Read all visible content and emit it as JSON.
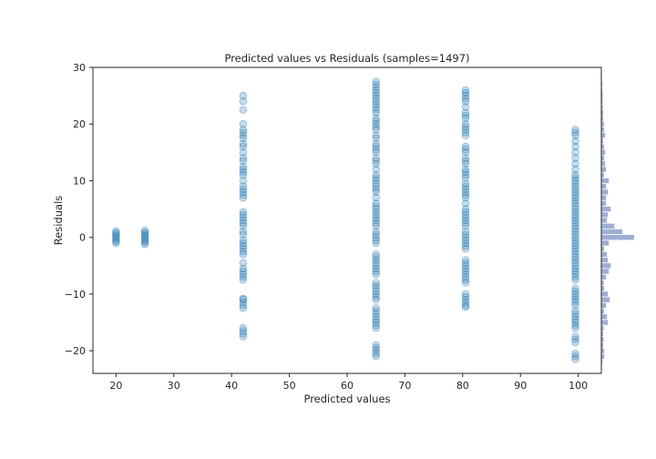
{
  "chart_data": {
    "type": "scatter",
    "title": "Predicted values vs Residuals (samples=1497)",
    "xlabel": "Predicted values",
    "ylabel": "Residuals",
    "xlim": [
      16,
      104
    ],
    "ylim": [
      -24,
      30
    ],
    "x_ticks": [
      20,
      30,
      40,
      50,
      60,
      70,
      80,
      90,
      100
    ],
    "y_ticks": [
      -20,
      -10,
      0,
      10,
      20,
      30
    ],
    "grid": false,
    "point_color": "#1f77b4",
    "point_alpha": 0.25,
    "histogram_color": "#8da0cb",
    "series": [
      {
        "x": 20,
        "y": [
          -1.0,
          -0.7,
          -0.4,
          -0.1,
          0.2,
          0.5,
          0.8,
          1.1
        ]
      },
      {
        "x": 25,
        "y": [
          -1.2,
          -0.9,
          -0.6,
          -0.3,
          0.0,
          0.3,
          0.6,
          0.9,
          1.2
        ]
      },
      {
        "x": 42,
        "y": [
          -17.5,
          -17.0,
          -16.5,
          -16.0,
          -12.5,
          -12.0,
          -11.5,
          -11.0,
          -10.8,
          -7.5,
          -7.0,
          -6.5,
          -6.0,
          -5.5,
          -4.5,
          -3.0,
          -2.5,
          -2.0,
          -1.5,
          -1.0,
          -0.5,
          0.5,
          1.0,
          2.0,
          2.5,
          3.0,
          3.5,
          4.0,
          4.5,
          7.0,
          7.5,
          8.0,
          8.5,
          9.0,
          10.0,
          11.0,
          11.5,
          12.0,
          12.5,
          13.5,
          14.0,
          15.0,
          16.0,
          16.5,
          17.5,
          18.0,
          18.5,
          19.0,
          20.0,
          22.5,
          24.0,
          25.0
        ]
      },
      {
        "x": 65,
        "y": [
          -21.0,
          -20.5,
          -20.0,
          -19.5,
          -19.0,
          -16.0,
          -15.5,
          -15.0,
          -14.5,
          -14.0,
          -13.5,
          -13.0,
          -12.5,
          -11.0,
          -10.5,
          -10.0,
          -9.5,
          -9.0,
          -8.5,
          -8.0,
          -6.5,
          -6.0,
          -5.5,
          -5.0,
          -4.5,
          -4.0,
          -3.5,
          -3.0,
          -1.0,
          -0.5,
          0.0,
          0.5,
          1.0,
          2.0,
          2.5,
          3.0,
          3.5,
          4.0,
          4.5,
          5.0,
          5.5,
          6.0,
          7.0,
          8.0,
          8.5,
          9.0,
          9.5,
          10.0,
          10.5,
          11.0,
          12.0,
          13.0,
          13.5,
          14.0,
          15.0,
          15.5,
          16.0,
          16.5,
          17.5,
          18.0,
          19.0,
          19.5,
          20.0,
          20.5,
          21.0,
          22.0,
          22.5,
          23.0,
          23.5,
          24.0,
          24.5,
          25.0,
          25.5,
          26.0,
          26.5,
          27.0,
          27.5
        ]
      },
      {
        "x": 80.5,
        "y": [
          -12.3,
          -12.0,
          -11.5,
          -11.0,
          -10.5,
          -10.0,
          -8.0,
          -7.5,
          -7.0,
          -6.5,
          -6.0,
          -5.5,
          -5.0,
          -4.5,
          -4.0,
          -2.0,
          -1.5,
          -1.0,
          -0.5,
          0.0,
          0.5,
          1.0,
          2.0,
          2.5,
          3.0,
          3.5,
          4.0,
          4.5,
          5.0,
          6.0,
          7.0,
          7.5,
          8.0,
          8.5,
          9.0,
          9.5,
          10.5,
          11.0,
          11.5,
          12.0,
          13.0,
          13.5,
          14.0,
          15.0,
          15.5,
          16.0,
          18.0,
          18.5,
          19.0,
          19.5,
          20.0,
          21.0,
          21.5,
          22.0,
          23.0,
          24.0,
          24.5,
          25.0,
          25.5,
          26.0
        ]
      },
      {
        "x": 99.5,
        "y": [
          -21.5,
          -21.0,
          -20.5,
          -18.5,
          -18.0,
          -17.5,
          -16.0,
          -15.5,
          -15.0,
          -14.5,
          -14.0,
          -13.5,
          -13.0,
          -12.0,
          -11.5,
          -11.0,
          -10.5,
          -10.0,
          -9.5,
          -9.0,
          -7.5,
          -7.0,
          -6.5,
          -6.0,
          -5.5,
          -5.0,
          -4.5,
          -4.0,
          -3.5,
          -3.0,
          -2.5,
          -2.0,
          -1.5,
          -1.0,
          -0.5,
          0.0,
          0.5,
          1.0,
          1.5,
          2.0,
          2.5,
          3.0,
          3.5,
          4.0,
          4.5,
          5.0,
          5.5,
          6.0,
          6.5,
          7.0,
          7.5,
          8.0,
          8.5,
          9.0,
          9.5,
          10.0,
          10.5,
          11.0,
          12.0,
          13.0,
          14.0,
          15.0,
          16.0,
          17.0,
          18.0,
          18.5,
          19.0
        ]
      }
    ],
    "histogram": {
      "bin_centers": [
        -22,
        -21,
        -20,
        -19,
        -18,
        -17,
        -16,
        -15,
        -14,
        -13,
        -12,
        -11,
        -10,
        -9,
        -8,
        -7,
        -6,
        -5,
        -4,
        -3,
        -2,
        -1,
        0,
        1,
        2,
        3,
        4,
        5,
        6,
        7,
        8,
        9,
        10,
        11,
        12,
        13,
        14,
        15,
        16,
        17,
        18,
        19,
        20,
        21,
        22,
        23,
        24,
        25,
        26,
        27
      ],
      "counts": [
        2,
        6,
        6,
        4,
        5,
        4,
        5,
        14,
        12,
        6,
        10,
        18,
        14,
        6,
        5,
        10,
        16,
        20,
        14,
        12,
        6,
        16,
        70,
        45,
        28,
        12,
        14,
        20,
        10,
        10,
        14,
        10,
        16,
        6,
        10,
        8,
        6,
        8,
        6,
        4,
        8,
        6,
        6,
        4,
        4,
        3,
        3,
        3,
        2,
        2
      ]
    }
  }
}
